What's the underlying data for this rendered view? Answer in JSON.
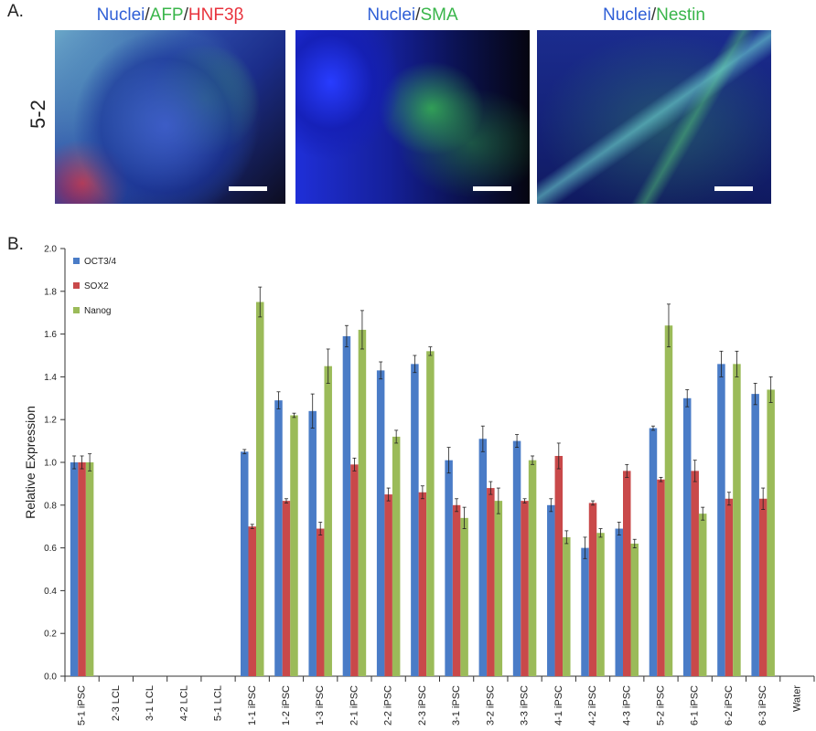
{
  "panel_a": {
    "letter": "A.",
    "row_label": "5-2",
    "images": [
      {
        "name": "hepatic",
        "title": [
          {
            "t": "Nuclei",
            "c": "blue"
          },
          {
            "t": "/",
            "c": "sep"
          },
          {
            "t": "AFP",
            "c": "green"
          },
          {
            "t": "/",
            "c": "sep"
          },
          {
            "t": "HNF3β",
            "c": "red"
          }
        ]
      },
      {
        "name": "sma",
        "title": [
          {
            "t": "Nuclei",
            "c": "blue"
          },
          {
            "t": "/",
            "c": "sep"
          },
          {
            "t": "SMA",
            "c": "green"
          }
        ]
      },
      {
        "name": "nestin",
        "title": [
          {
            "t": "Nuclei",
            "c": "blue"
          },
          {
            "t": "/",
            "c": "sep"
          },
          {
            "t": "Nestin",
            "c": "green"
          }
        ]
      }
    ]
  },
  "panel_b": {
    "letter": "B."
  },
  "chart_data": {
    "type": "bar",
    "ylabel": "Relative Expression",
    "xlabel": "",
    "ylim": [
      0,
      2.0
    ],
    "yticks": [
      "0.0",
      "0.2",
      "0.4",
      "0.6",
      "0.8",
      "1.0",
      "1.2",
      "1.4",
      "1.6",
      "1.8",
      "2.0"
    ],
    "legend_position": "top-left",
    "categories": [
      "5-1 iPSC",
      "2-3 LCL",
      "3-1 LCL",
      "4-2 LCL",
      "5-1 LCL",
      "1-1 iPSC",
      "1-2 iPSC",
      "1-3 iPSC",
      "2-1 iPSC",
      "2-2 iPSC",
      "2-3 iPSC",
      "3-1 iPSC",
      "3-2 iPSC",
      "3-3 iPSC",
      "4-1 iPSC",
      "4-2 iPSC",
      "4-3 iPSC",
      "5-2 iPSC",
      "6-1 iPSC",
      "6-2 iPSC",
      "6-3 iPSC",
      "Water"
    ],
    "series": [
      {
        "name": "OCT3/4",
        "color": "#4a7cc7",
        "values": [
          1.0,
          0,
          0,
          0,
          0,
          1.05,
          1.29,
          1.24,
          1.59,
          1.43,
          1.46,
          1.01,
          1.11,
          1.1,
          0.8,
          0.6,
          0.69,
          1.16,
          1.3,
          1.46,
          1.32,
          0
        ],
        "errors": [
          0.03,
          0,
          0,
          0,
          0,
          0.01,
          0.04,
          0.08,
          0.05,
          0.04,
          0.04,
          0.06,
          0.06,
          0.03,
          0.03,
          0.05,
          0.03,
          0.01,
          0.04,
          0.06,
          0.05,
          0
        ]
      },
      {
        "name": "SOX2",
        "color": "#c9494a",
        "values": [
          1.0,
          0,
          0,
          0,
          0,
          0.7,
          0.82,
          0.69,
          0.99,
          0.85,
          0.86,
          0.8,
          0.88,
          0.82,
          1.03,
          0.81,
          0.96,
          0.92,
          0.96,
          0.83,
          0.83,
          0
        ],
        "errors": [
          0.03,
          0,
          0,
          0,
          0,
          0.01,
          0.01,
          0.03,
          0.03,
          0.03,
          0.03,
          0.03,
          0.03,
          0.01,
          0.06,
          0.01,
          0.03,
          0.01,
          0.05,
          0.03,
          0.05,
          0
        ]
      },
      {
        "name": "Nanog",
        "color": "#9bbb59",
        "values": [
          1.0,
          0,
          0,
          0,
          0,
          1.75,
          1.22,
          1.45,
          1.62,
          1.12,
          1.52,
          0.74,
          0.82,
          1.01,
          0.65,
          0.67,
          0.62,
          1.64,
          0.76,
          1.46,
          1.34,
          0
        ],
        "errors": [
          0.04,
          0,
          0,
          0,
          0,
          0.07,
          0.01,
          0.08,
          0.09,
          0.03,
          0.02,
          0.05,
          0.06,
          0.02,
          0.03,
          0.02,
          0.02,
          0.1,
          0.03,
          0.06,
          0.06,
          0
        ]
      }
    ]
  }
}
